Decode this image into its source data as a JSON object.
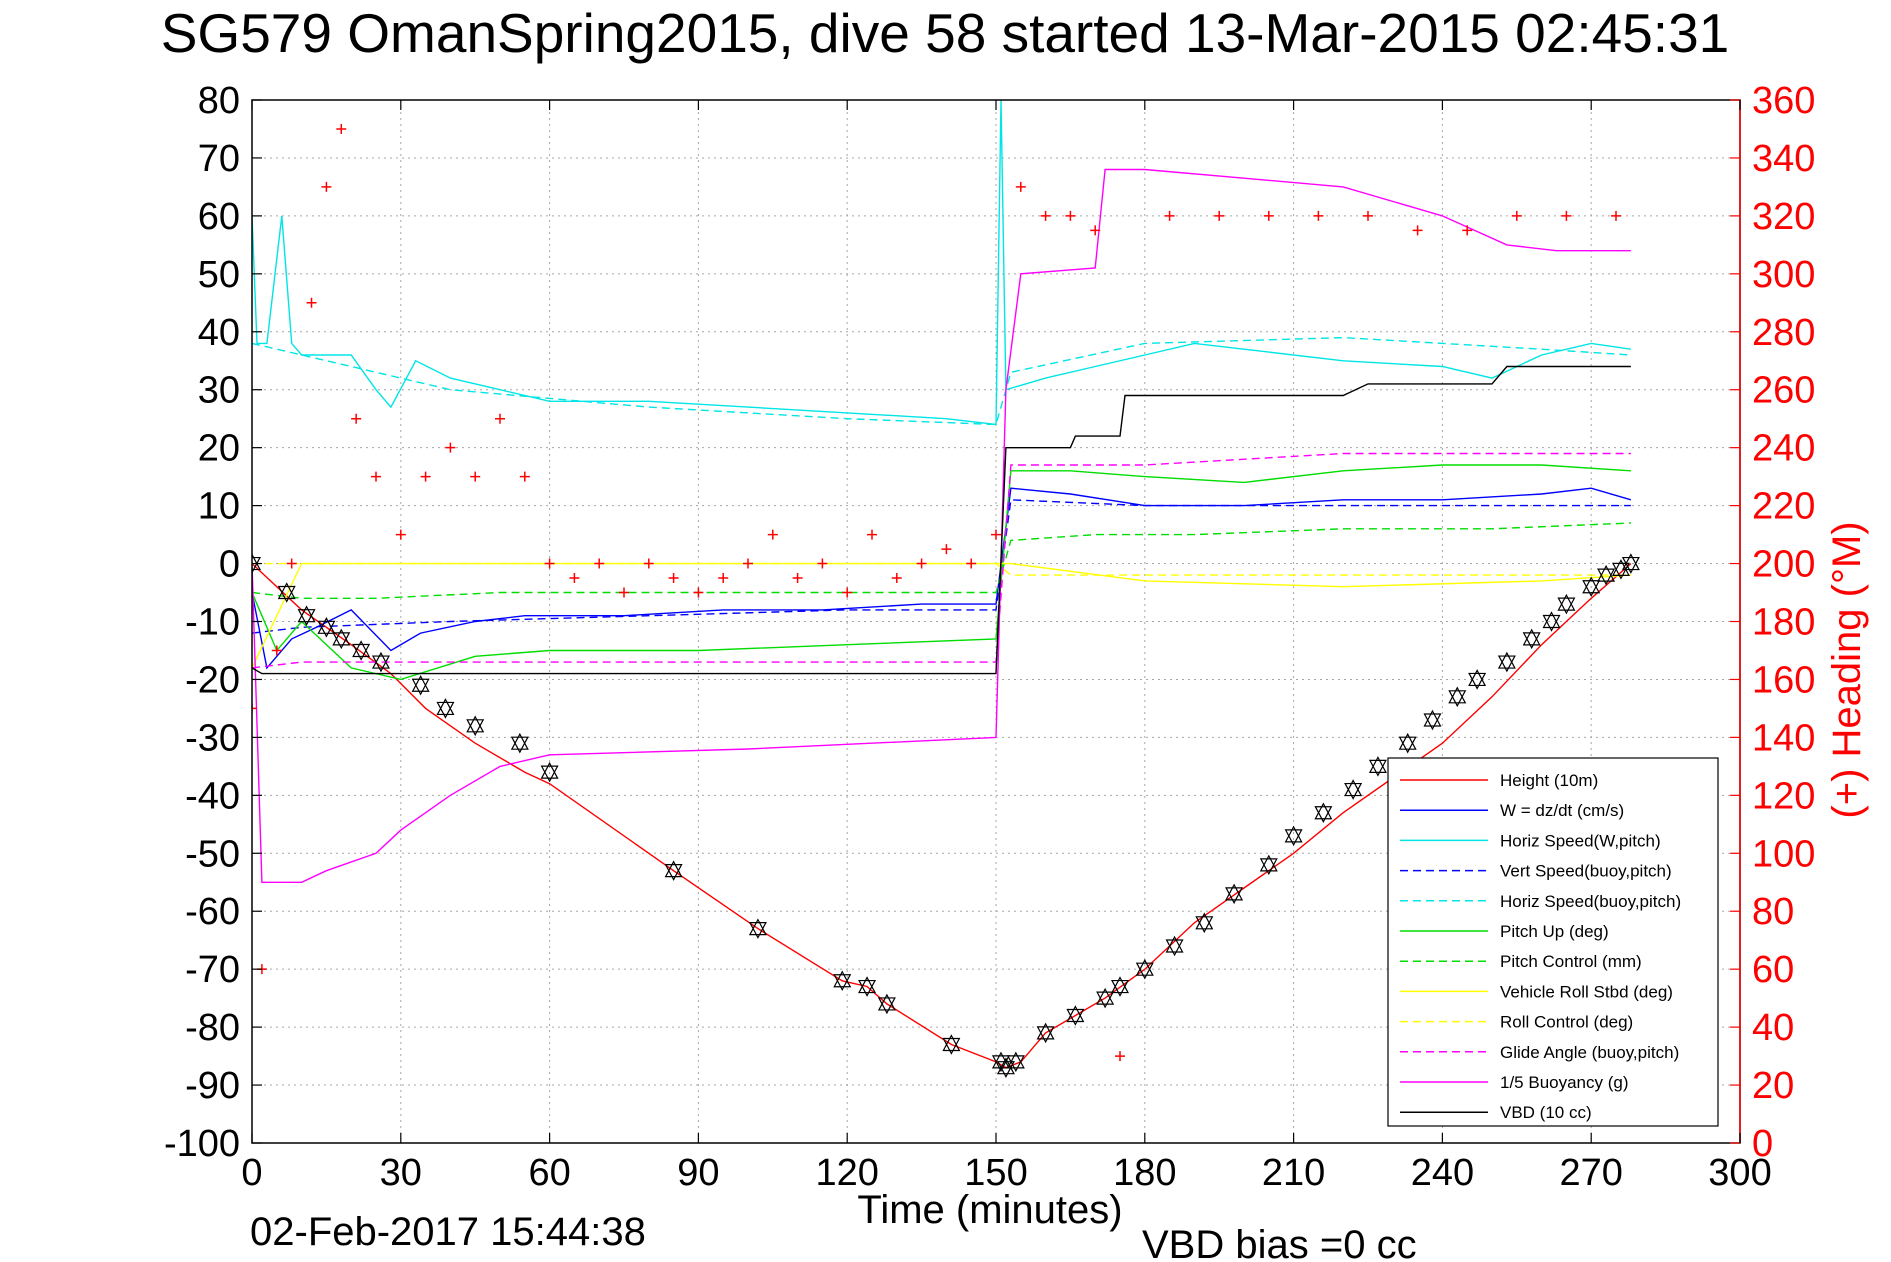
{
  "chart_data": {
    "type": "line",
    "title": "SG579 OmanSpring2015, dive 58 started 13-Mar-2015 02:45:31",
    "xlabel": "Time (minutes)",
    "ylabel": "",
    "y2label": "(+) Heading (°M)",
    "footer_date": "02-Feb-2017 15:44:38",
    "footer_bias": "VBD bias =0 cc",
    "xlim": [
      0,
      300
    ],
    "ylim": [
      -100,
      80
    ],
    "y2lim": [
      0,
      360
    ],
    "xticks": [
      0,
      30,
      60,
      90,
      120,
      150,
      180,
      210,
      240,
      270,
      300
    ],
    "yticks": [
      80,
      70,
      60,
      50,
      40,
      30,
      20,
      10,
      0,
      -10,
      -20,
      -30,
      -40,
      -50,
      -60,
      -70,
      -80,
      -90,
      -100
    ],
    "y2ticks": [
      360,
      340,
      320,
      300,
      280,
      260,
      240,
      220,
      200,
      180,
      160,
      140,
      120,
      100,
      80,
      60,
      40,
      20,
      0
    ],
    "grid": true,
    "legend_position": "bottom-right",
    "colors": {
      "red": "#ff0000",
      "blue": "#0000ff",
      "cyan": "#00e5e5",
      "green": "#00dd00",
      "yellow": "#ffff00",
      "magenta": "#ff00ff",
      "black": "#000000",
      "grid": "#a6a6a6"
    },
    "series": [
      {
        "name": "Height (10m)",
        "color": "#ff0000",
        "style": "solid",
        "x": [
          0,
          10,
          20,
          28,
          35,
          45,
          55,
          60,
          85,
          102,
          119,
          124,
          128,
          141,
          150,
          152,
          155,
          160,
          166,
          172,
          180,
          190,
          200,
          210,
          220,
          230,
          240,
          250,
          260,
          270,
          278
        ],
        "y": [
          0,
          -8,
          -14,
          -19,
          -25,
          -31,
          -36,
          -38,
          -53,
          -63,
          -72,
          -73,
          -76,
          -83,
          -86,
          -87,
          -86,
          -81,
          -78,
          -75,
          -70,
          -62,
          -56,
          -50,
          -43,
          -37,
          -31,
          -23,
          -14,
          -6,
          0
        ]
      },
      {
        "name": "W = dz/dt (cm/s)",
        "color": "#0000ff",
        "style": "solid",
        "x": [
          0,
          3,
          8,
          13,
          20,
          28,
          34,
          45,
          55,
          75,
          95,
          115,
          135,
          150,
          153,
          165,
          180,
          200,
          220,
          240,
          260,
          270,
          278
        ],
        "y": [
          -5,
          -18,
          -13,
          -11,
          -8,
          -15,
          -12,
          -10,
          -9,
          -9,
          -8,
          -8,
          -7,
          -7,
          13,
          12,
          10,
          10,
          11,
          11,
          12,
          13,
          11
        ]
      },
      {
        "name": "Horiz Speed(W,pitch)",
        "color": "#00e5e5",
        "style": "solid",
        "x": [
          0,
          1,
          3,
          6,
          8,
          10,
          20,
          25,
          28,
          33,
          40,
          50,
          60,
          80,
          100,
          120,
          140,
          150,
          151,
          152,
          160,
          170,
          180,
          190,
          200,
          220,
          240,
          250,
          260,
          270,
          278
        ],
        "y": [
          60,
          38,
          38,
          60,
          38,
          36,
          36,
          30,
          27,
          35,
          32,
          30,
          28,
          28,
          27,
          26,
          25,
          24,
          80,
          30,
          32,
          34,
          36,
          38,
          37,
          35,
          34,
          32,
          36,
          38,
          37
        ]
      },
      {
        "name": "Vert Speed(buoy,pitch)",
        "color": "#0000ff",
        "style": "dashed",
        "x": [
          0,
          10,
          40,
          80,
          120,
          150,
          153,
          180,
          220,
          260,
          278
        ],
        "y": [
          -12,
          -11,
          -10,
          -9,
          -8,
          -8,
          11,
          10,
          10,
          10,
          10
        ]
      },
      {
        "name": "Horiz Speed(buoy,pitch)",
        "color": "#00e5e5",
        "style": "dashed",
        "x": [
          0,
          20,
          40,
          80,
          120,
          150,
          153,
          180,
          220,
          260,
          278
        ],
        "y": [
          38,
          34,
          30,
          27,
          25,
          24,
          33,
          38,
          39,
          37,
          36
        ]
      },
      {
        "name": "Pitch Up (deg)",
        "color": "#00dd00",
        "style": "solid",
        "x": [
          0,
          5,
          10,
          20,
          30,
          45,
          60,
          90,
          120,
          150,
          153,
          165,
          180,
          200,
          220,
          240,
          260,
          278
        ],
        "y": [
          -5,
          -15,
          -10,
          -18,
          -20,
          -16,
          -15,
          -15,
          -14,
          -13,
          16,
          16,
          15,
          14,
          16,
          17,
          17,
          16
        ]
      },
      {
        "name": "Pitch Control (mm)",
        "color": "#00dd00",
        "style": "dashed",
        "x": [
          0,
          10,
          25,
          50,
          90,
          130,
          150,
          153,
          170,
          190,
          220,
          250,
          278
        ],
        "y": [
          -5,
          -6,
          -6,
          -5,
          -5,
          -5,
          -5,
          4,
          5,
          5,
          6,
          6,
          7
        ]
      },
      {
        "name": "Vehicle Roll Stbd (deg)",
        "color": "#ffff00",
        "style": "solid",
        "x": [
          0,
          10,
          20,
          40,
          60,
          100,
          140,
          150,
          153,
          180,
          220,
          260,
          278
        ],
        "y": [
          -18,
          0,
          0,
          0,
          0,
          0,
          0,
          0,
          0,
          -3,
          -4,
          -3,
          -2
        ]
      },
      {
        "name": "Roll Control (deg)",
        "color": "#ffff00",
        "style": "dashed",
        "x": [
          0,
          150,
          153,
          278
        ],
        "y": [
          0,
          0,
          -2,
          -2
        ]
      },
      {
        "name": "Glide Angle (buoy,pitch)",
        "color": "#ff00ff",
        "style": "dashed",
        "x": [
          0,
          10,
          30,
          60,
          100,
          150,
          153,
          180,
          220,
          260,
          278
        ],
        "y": [
          -18,
          -17,
          -17,
          -17,
          -17,
          -17,
          17,
          17,
          19,
          19,
          19
        ]
      },
      {
        "name": "1/5 Buoyancy (g)",
        "color": "#ff00ff",
        "style": "solid",
        "x": [
          0,
          2,
          10,
          15,
          25,
          30,
          40,
          50,
          60,
          100,
          150,
          152,
          155,
          170,
          172,
          180,
          220,
          240,
          253,
          263,
          278
        ],
        "y": [
          0,
          -55,
          -55,
          -53,
          -50,
          -46,
          -40,
          -35,
          -33,
          -32,
          -30,
          30,
          50,
          51,
          68,
          68,
          65,
          60,
          55,
          54,
          54
        ]
      },
      {
        "name": "VBD (10 cc)",
        "color": "#000000",
        "style": "solid",
        "x": [
          0,
          2,
          150,
          152,
          160,
          165,
          166,
          175,
          176,
          220,
          225,
          250,
          253,
          278
        ],
        "y": [
          -18,
          -19,
          -19,
          20,
          20,
          20,
          22,
          22,
          29,
          29,
          31,
          31,
          34,
          34
        ]
      },
      {
        "name": "(+) Heading (°M)",
        "color": "#ff0000",
        "style": "markers",
        "axis": "right",
        "x": [
          0,
          2,
          5,
          8,
          12,
          15,
          18,
          21,
          25,
          30,
          35,
          40,
          45,
          50,
          55,
          60,
          65,
          70,
          75,
          80,
          85,
          90,
          95,
          100,
          105,
          110,
          115,
          120,
          125,
          130,
          135,
          140,
          145,
          150,
          155,
          160,
          165,
          170,
          175,
          185,
          195,
          205,
          215,
          225,
          235,
          245,
          255,
          265,
          275
        ],
        "y": [
          150,
          60,
          170,
          200,
          290,
          330,
          350,
          250,
          230,
          210,
          230,
          240,
          230,
          250,
          230,
          200,
          195,
          200,
          190,
          200,
          195,
          190,
          195,
          200,
          210,
          195,
          200,
          190,
          210,
          195,
          200,
          205,
          200,
          210,
          330,
          320,
          320,
          315,
          30,
          320,
          320,
          320,
          320,
          320,
          315,
          315,
          320,
          320,
          320
        ]
      }
    ],
    "markers": [
      {
        "name": "triangles",
        "symbol": "triangle-dual",
        "color": "#000000",
        "x": [
          0,
          7,
          11,
          15,
          18,
          22,
          26,
          34,
          39,
          45,
          54,
          60,
          85,
          102,
          119,
          124,
          128,
          141,
          151,
          152,
          154,
          160,
          166,
          172,
          175,
          180,
          186,
          192,
          198,
          205,
          210,
          216,
          222,
          227,
          233,
          238,
          243,
          247,
          253,
          258,
          262,
          265,
          270,
          273,
          276,
          278
        ],
        "y": [
          0,
          -5,
          -9,
          -11,
          -13,
          -15,
          -17,
          -21,
          -25,
          -28,
          -31,
          -36,
          -53,
          -63,
          -72,
          -73,
          -76,
          -83,
          -86,
          -87,
          -86,
          -81,
          -78,
          -75,
          -73,
          -70,
          -66,
          -62,
          -57,
          -52,
          -47,
          -43,
          -39,
          -35,
          -31,
          -27,
          -23,
          -20,
          -17,
          -13,
          -10,
          -7,
          -4,
          -2,
          -1,
          0
        ]
      }
    ]
  }
}
